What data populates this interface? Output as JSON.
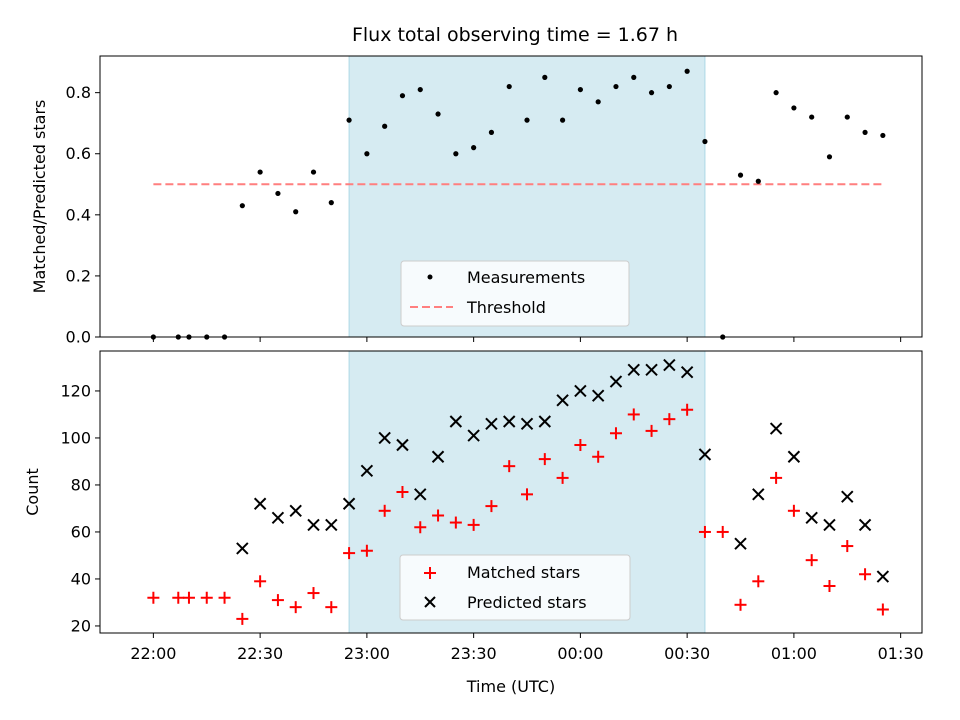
{
  "title": "Flux total observing time = 1.67 h",
  "chart_data": [
    {
      "type": "scatter",
      "panel": "top",
      "ylabel": "Matched/Predicted stars",
      "ylim": [
        0,
        0.92
      ],
      "yticks": [
        0.0,
        0.2,
        0.4,
        0.6,
        0.8
      ],
      "ytick_labels": [
        "0.0",
        "0.2",
        "0.4",
        "0.6",
        "0.8"
      ],
      "shaded_window": {
        "start": "22:55",
        "end": "00:35",
        "color": "#add8e6"
      },
      "legend": {
        "location": "lower center",
        "entries": [
          "Measurements",
          "Threshold"
        ]
      },
      "series": [
        {
          "name": "Measurements",
          "marker": "dot",
          "color": "#000000",
          "points": [
            [
              "22:00",
              0.0
            ],
            [
              "22:07",
              0.0
            ],
            [
              "22:10",
              0.0
            ],
            [
              "22:15",
              0.0
            ],
            [
              "22:20",
              0.0
            ],
            [
              "22:25",
              0.43
            ],
            [
              "22:30",
              0.54
            ],
            [
              "22:35",
              0.47
            ],
            [
              "22:40",
              0.41
            ],
            [
              "22:45",
              0.54
            ],
            [
              "22:50",
              0.44
            ],
            [
              "22:55",
              0.71
            ],
            [
              "23:00",
              0.6
            ],
            [
              "23:05",
              0.69
            ],
            [
              "23:10",
              0.79
            ],
            [
              "23:15",
              0.81
            ],
            [
              "23:20",
              0.73
            ],
            [
              "23:25",
              0.6
            ],
            [
              "23:30",
              0.62
            ],
            [
              "23:35",
              0.67
            ],
            [
              "23:40",
              0.82
            ],
            [
              "23:45",
              0.71
            ],
            [
              "23:50",
              0.85
            ],
            [
              "23:55",
              0.71
            ],
            [
              "00:00",
              0.81
            ],
            [
              "00:05",
              0.77
            ],
            [
              "00:10",
              0.82
            ],
            [
              "00:15",
              0.85
            ],
            [
              "00:20",
              0.8
            ],
            [
              "00:25",
              0.82
            ],
            [
              "00:30",
              0.87
            ],
            [
              "00:35",
              0.64
            ],
            [
              "00:40",
              0.0
            ],
            [
              "00:45",
              0.53
            ],
            [
              "00:50",
              0.51
            ],
            [
              "00:55",
              0.8
            ],
            [
              "01:00",
              0.75
            ],
            [
              "01:05",
              0.72
            ],
            [
              "01:10",
              0.59
            ],
            [
              "01:15",
              0.72
            ],
            [
              "01:20",
              0.67
            ],
            [
              "01:25",
              0.66
            ]
          ]
        },
        {
          "name": "Threshold",
          "style": "dashed-line",
          "color": "#ff7f7f",
          "points": [
            [
              "22:00",
              0.5
            ],
            [
              "01:25",
              0.5
            ]
          ]
        }
      ]
    },
    {
      "type": "scatter",
      "panel": "bottom",
      "xlabel": "Time (UTC)",
      "ylabel": "Count",
      "ylim": [
        17,
        137
      ],
      "yticks": [
        20,
        40,
        60,
        80,
        100,
        120
      ],
      "ytick_labels": [
        "20",
        "40",
        "60",
        "80",
        "100",
        "120"
      ],
      "xlim": [
        "21:45",
        "01:36"
      ],
      "xticks": [
        "22:00",
        "22:30",
        "23:00",
        "23:30",
        "00:00",
        "00:30",
        "01:00",
        "01:30"
      ],
      "shaded_window": {
        "start": "22:55",
        "end": "00:35",
        "color": "#add8e6"
      },
      "legend": {
        "location": "lower center",
        "entries": [
          "Matched stars",
          "Predicted stars"
        ]
      },
      "series": [
        {
          "name": "Matched stars",
          "marker": "plus",
          "color": "#ff0000",
          "points": [
            [
              "22:00",
              32
            ],
            [
              "22:07",
              32
            ],
            [
              "22:10",
              32
            ],
            [
              "22:15",
              32
            ],
            [
              "22:20",
              32
            ],
            [
              "22:25",
              23
            ],
            [
              "22:30",
              39
            ],
            [
              "22:35",
              31
            ],
            [
              "22:40",
              28
            ],
            [
              "22:45",
              34
            ],
            [
              "22:50",
              28
            ],
            [
              "22:55",
              51
            ],
            [
              "23:00",
              52
            ],
            [
              "23:05",
              69
            ],
            [
              "23:10",
              77
            ],
            [
              "23:15",
              62
            ],
            [
              "23:20",
              67
            ],
            [
              "23:25",
              64
            ],
            [
              "23:30",
              63
            ],
            [
              "23:35",
              71
            ],
            [
              "23:40",
              88
            ],
            [
              "23:45",
              76
            ],
            [
              "23:50",
              91
            ],
            [
              "23:55",
              83
            ],
            [
              "00:00",
              97
            ],
            [
              "00:05",
              92
            ],
            [
              "00:10",
              102
            ],
            [
              "00:15",
              110
            ],
            [
              "00:20",
              103
            ],
            [
              "00:25",
              108
            ],
            [
              "00:30",
              112
            ],
            [
              "00:35",
              60
            ],
            [
              "00:40",
              60
            ],
            [
              "00:45",
              29
            ],
            [
              "00:50",
              39
            ],
            [
              "00:55",
              83
            ],
            [
              "01:00",
              69
            ],
            [
              "01:05",
              48
            ],
            [
              "01:10",
              37
            ],
            [
              "01:15",
              54
            ],
            [
              "01:20",
              42
            ],
            [
              "01:25",
              27
            ]
          ]
        },
        {
          "name": "Predicted stars",
          "marker": "x",
          "color": "#000000",
          "points": [
            [
              "22:25",
              53
            ],
            [
              "22:30",
              72
            ],
            [
              "22:35",
              66
            ],
            [
              "22:40",
              69
            ],
            [
              "22:45",
              63
            ],
            [
              "22:50",
              63
            ],
            [
              "22:55",
              72
            ],
            [
              "23:00",
              86
            ],
            [
              "23:05",
              100
            ],
            [
              "23:10",
              97
            ],
            [
              "23:15",
              76
            ],
            [
              "23:20",
              92
            ],
            [
              "23:25",
              107
            ],
            [
              "23:30",
              101
            ],
            [
              "23:35",
              106
            ],
            [
              "23:40",
              107
            ],
            [
              "23:45",
              106
            ],
            [
              "23:50",
              107
            ],
            [
              "23:55",
              116
            ],
            [
              "00:00",
              120
            ],
            [
              "00:05",
              118
            ],
            [
              "00:10",
              124
            ],
            [
              "00:15",
              129
            ],
            [
              "00:20",
              129
            ],
            [
              "00:25",
              131
            ],
            [
              "00:30",
              128
            ],
            [
              "00:35",
              93
            ],
            [
              "00:45",
              55
            ],
            [
              "00:50",
              76
            ],
            [
              "00:55",
              104
            ],
            [
              "01:00",
              92
            ],
            [
              "01:05",
              66
            ],
            [
              "01:10",
              63
            ],
            [
              "01:15",
              75
            ],
            [
              "01:20",
              63
            ],
            [
              "01:25",
              41
            ]
          ]
        }
      ]
    }
  ]
}
